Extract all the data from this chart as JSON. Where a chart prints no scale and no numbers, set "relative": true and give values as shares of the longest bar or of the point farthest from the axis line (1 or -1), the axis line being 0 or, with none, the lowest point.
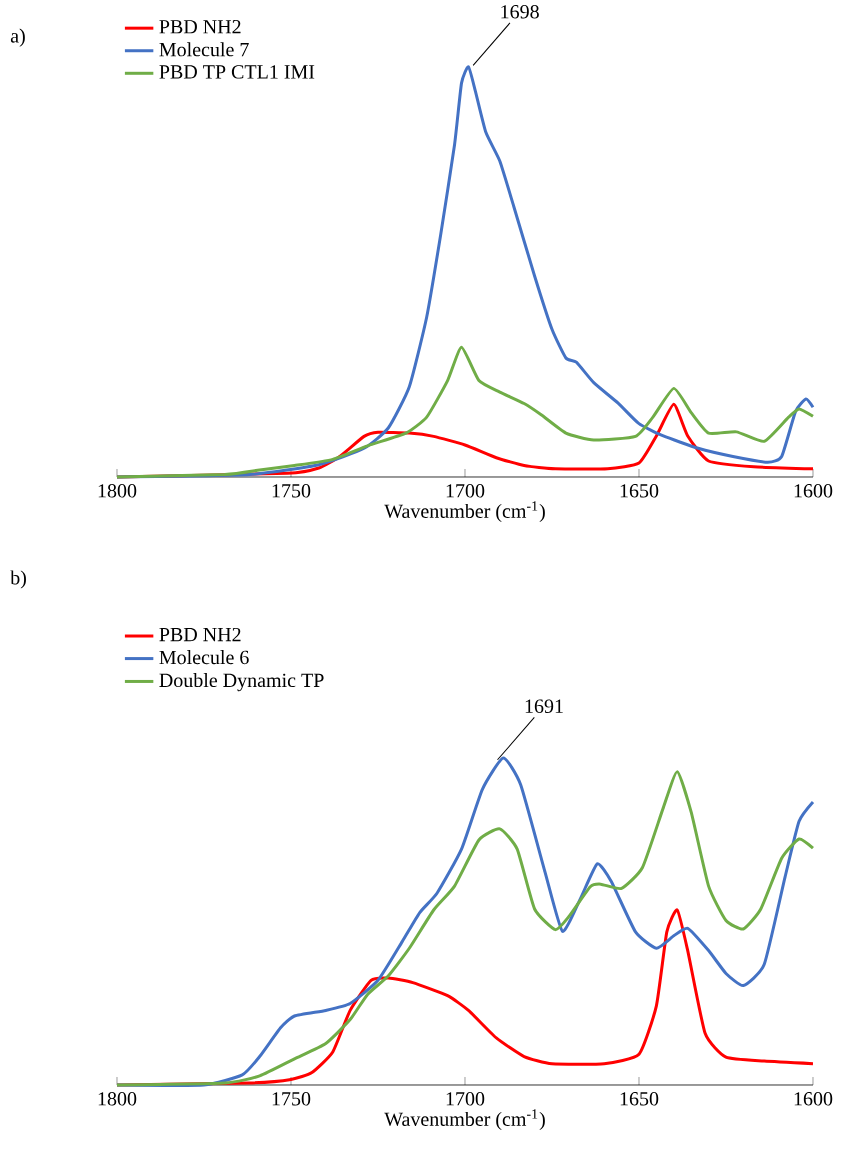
{
  "chart_data": [
    {
      "type": "line",
      "title": "a)",
      "xlabel": "Wavenumber (cm$^{-1}$)",
      "relative": true,
      "legend": "top left",
      "xlim": [
        1800,
        1600
      ],
      "xticks": [
        1800,
        1750,
        1700,
        1650,
        1600
      ],
      "annotations": [
        {
          "text": "1698",
          "x": 1698,
          "y": 1.0
        }
      ],
      "series": [
        {
          "name": "PBD NH2",
          "color": "#ff0000",
          "x": [
            1800,
            1751,
            1742,
            1736,
            1729,
            1725,
            1716,
            1709,
            1700,
            1691,
            1683,
            1674,
            1659,
            1650,
            1645,
            1640,
            1636,
            1630,
            1617,
            1600
          ],
          "values": [
            0,
            0.009,
            0.022,
            0.05,
            0.099,
            0.109,
            0.107,
            0.099,
            0.078,
            0.047,
            0.028,
            0.02,
            0.02,
            0.034,
            0.1,
            0.177,
            0.1,
            0.039,
            0.025,
            0.02
          ]
        },
        {
          "name": "Molecule 7",
          "color": "#4472c4",
          "x": [
            1800,
            1762,
            1742,
            1729,
            1722,
            1716,
            1711,
            1707,
            1703,
            1701,
            1699,
            1697,
            1694,
            1690,
            1686,
            1680,
            1675,
            1671,
            1668,
            1663,
            1656,
            1650,
            1643,
            1633,
            1623,
            1613,
            1609,
            1605,
            1602,
            1600
          ],
          "values": [
            0,
            0.006,
            0.03,
            0.07,
            0.12,
            0.22,
            0.39,
            0.59,
            0.81,
            0.96,
            1.0,
            0.94,
            0.84,
            0.77,
            0.66,
            0.49,
            0.36,
            0.29,
            0.28,
            0.23,
            0.18,
            0.13,
            0.1,
            0.07,
            0.05,
            0.036,
            0.05,
            0.16,
            0.19,
            0.17
          ]
        },
        {
          "name": "PBD TP CTL1 IMI",
          "color": "#70ad47",
          "x": [
            1800,
            1769,
            1759,
            1749,
            1738,
            1728,
            1717,
            1711,
            1705,
            1701,
            1696,
            1690,
            1683,
            1678,
            1671,
            1663,
            1651,
            1646,
            1640,
            1635,
            1630,
            1622,
            1614,
            1607,
            1604,
            1600
          ],
          "values": [
            0,
            0.006,
            0.017,
            0.028,
            0.043,
            0.076,
            0.107,
            0.146,
            0.235,
            0.316,
            0.235,
            0.207,
            0.179,
            0.151,
            0.107,
            0.09,
            0.099,
            0.146,
            0.216,
            0.157,
            0.107,
            0.11,
            0.087,
            0.146,
            0.166,
            0.148
          ]
        }
      ]
    },
    {
      "type": "line",
      "title": "b)",
      "xlabel": "Wavenumber (cm$^{-1}$)",
      "relative": true,
      "legend": "top left",
      "xlim": [
        1800,
        1600
      ],
      "xticks": [
        1800,
        1750,
        1700,
        1650,
        1600
      ],
      "annotations": [
        {
          "text": "1691",
          "x": 1691,
          "y": 0.99
        }
      ],
      "series": [
        {
          "name": "PBD NH2",
          "color": "#ff0000",
          "x": [
            1800,
            1762,
            1750,
            1744,
            1738,
            1733,
            1727,
            1722,
            1715,
            1705,
            1699,
            1691,
            1683,
            1675,
            1660,
            1650,
            1645,
            1642,
            1639,
            1636,
            1631,
            1625,
            1614,
            1600
          ],
          "values": [
            0,
            0.006,
            0.017,
            0.038,
            0.101,
            0.228,
            0.32,
            0.327,
            0.313,
            0.273,
            0.228,
            0.144,
            0.087,
            0.065,
            0.065,
            0.094,
            0.242,
            0.468,
            0.535,
            0.411,
            0.158,
            0.085,
            0.073,
            0.065
          ]
        },
        {
          "name": "Molecule 6",
          "color": "#4472c4",
          "x": [
            1800,
            1775,
            1764,
            1759,
            1753,
            1749,
            1740,
            1733,
            1725,
            1718,
            1713,
            1708,
            1701,
            1695,
            1689,
            1684,
            1677,
            1672,
            1667,
            1662,
            1658,
            1651,
            1645,
            1640,
            1636,
            1630,
            1625,
            1620,
            1614,
            1608,
            1604,
            1600
          ],
          "values": [
            0,
            0,
            0.031,
            0.087,
            0.175,
            0.211,
            0.228,
            0.249,
            0.32,
            0.439,
            0.527,
            0.587,
            0.721,
            0.904,
            1.0,
            0.918,
            0.651,
            0.47,
            0.566,
            0.676,
            0.623,
            0.468,
            0.418,
            0.456,
            0.479,
            0.411,
            0.341,
            0.304,
            0.369,
            0.637,
            0.806,
            0.865
          ]
        },
        {
          "name": "Double Dynamic TP",
          "color": "#70ad47",
          "x": [
            1800,
            1769,
            1759,
            1749,
            1740,
            1733,
            1728,
            1722,
            1716,
            1709,
            1703,
            1696,
            1690,
            1685,
            1680,
            1674,
            1670,
            1664,
            1661,
            1655,
            1649,
            1643,
            1639,
            1635,
            1630,
            1625,
            1620,
            1615,
            1609,
            1604,
            1600
          ],
          "values": [
            0,
            0.006,
            0.028,
            0.08,
            0.127,
            0.2,
            0.277,
            0.334,
            0.418,
            0.535,
            0.608,
            0.749,
            0.783,
            0.721,
            0.538,
            0.475,
            0.517,
            0.606,
            0.614,
            0.601,
            0.665,
            0.848,
            0.958,
            0.834,
            0.608,
            0.503,
            0.477,
            0.538,
            0.693,
            0.752,
            0.724
          ]
        }
      ]
    }
  ]
}
